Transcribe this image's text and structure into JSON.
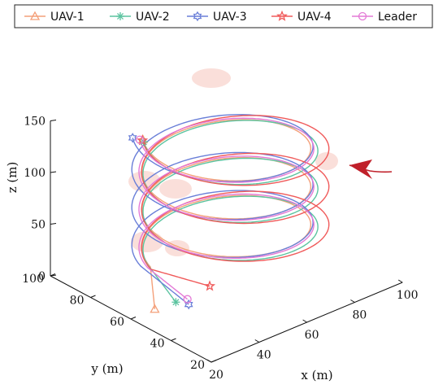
{
  "chart_data": {
    "type": "line3d",
    "title": "",
    "xlabel": "x (m)",
    "ylabel": "y (m)",
    "zlabel": "z (m)",
    "xlim": [
      20,
      100
    ],
    "ylim": [
      20,
      100
    ],
    "zlim": [
      0,
      150
    ],
    "xticks": [
      "20",
      "40",
      "60",
      "80",
      "100"
    ],
    "yticks": [
      "20",
      "40",
      "60",
      "80",
      "100"
    ],
    "zticks": [
      "0",
      "50",
      "100",
      "150"
    ],
    "grid": false,
    "legend_position": "top",
    "series": [
      {
        "name": "UAV-1",
        "color": "#f4a07a",
        "marker": "triangle",
        "start": [
          36,
          60,
          0
        ],
        "end": [
          58,
          55,
          150
        ],
        "spiral_center": [
          60,
          60
        ],
        "radius": 27
      },
      {
        "name": "UAV-2",
        "color": "#5cc4a0",
        "marker": "asterisk",
        "start": [
          40,
          56,
          0
        ],
        "end": [
          62,
          50,
          150
        ],
        "spiral_center": [
          60,
          58
        ],
        "radius": 28
      },
      {
        "name": "UAV-3",
        "color": "#6a7fd8",
        "marker": "hexagram",
        "start": [
          38,
          58,
          0
        ],
        "end": [
          63,
          56,
          150
        ],
        "spiral_center": [
          60,
          62
        ],
        "radius": 29
      },
      {
        "name": "UAV-4",
        "color": "#f05a5a",
        "marker": "star",
        "start": [
          48,
          58,
          0
        ],
        "end": [
          66,
          54,
          150
        ],
        "spiral_center": [
          62,
          58
        ],
        "radius": 30
      },
      {
        "name": "Leader",
        "color": "#e47ad6",
        "marker": "circle",
        "start": [
          42,
          58,
          0
        ],
        "end": [
          62,
          54,
          150
        ],
        "spiral_center": [
          60,
          60
        ],
        "radius": 28
      }
    ],
    "annotations": [
      {
        "type": "arrow",
        "color": "#c0202a",
        "label": ""
      }
    ]
  }
}
